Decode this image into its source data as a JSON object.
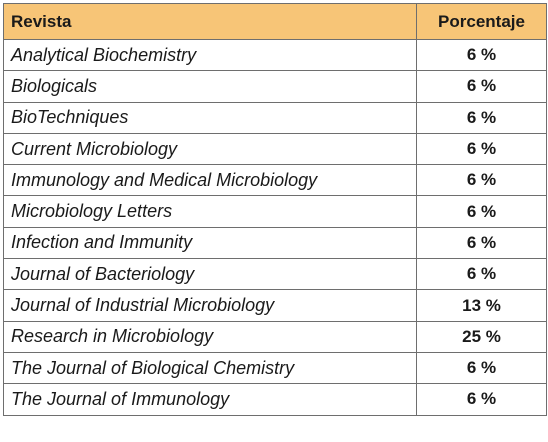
{
  "table": {
    "headers": [
      "Revista",
      "Porcentaje"
    ],
    "rows": [
      {
        "journal": "Analytical Biochemistry",
        "percent": "6 %"
      },
      {
        "journal": "Biologicals",
        "percent": "6 %"
      },
      {
        "journal": "BioTechniques",
        "percent": "6 %"
      },
      {
        "journal": "Current Microbiology",
        "percent": "6 %"
      },
      {
        "journal": "Immunology and Medical Microbiology",
        "percent": "6 %"
      },
      {
        "journal": "Microbiology Letters",
        "percent": "6 %"
      },
      {
        "journal": "Infection and Immunity",
        "percent": "6 %"
      },
      {
        "journal": "Journal of Bacteriology",
        "percent": "6 %"
      },
      {
        "journal": "Journal of Industrial Microbiology",
        "percent": "13 %"
      },
      {
        "journal": "Research in Microbiology",
        "percent": "25 %"
      },
      {
        "journal": "The Journal of Biological Chemistry",
        "percent": "6 %"
      },
      {
        "journal": "The Journal of Immunology",
        "percent": "6 %"
      }
    ],
    "colors": {
      "header_bg": "#f7c577",
      "border": "#6e6e6e",
      "text": "#1a1a1a"
    }
  }
}
